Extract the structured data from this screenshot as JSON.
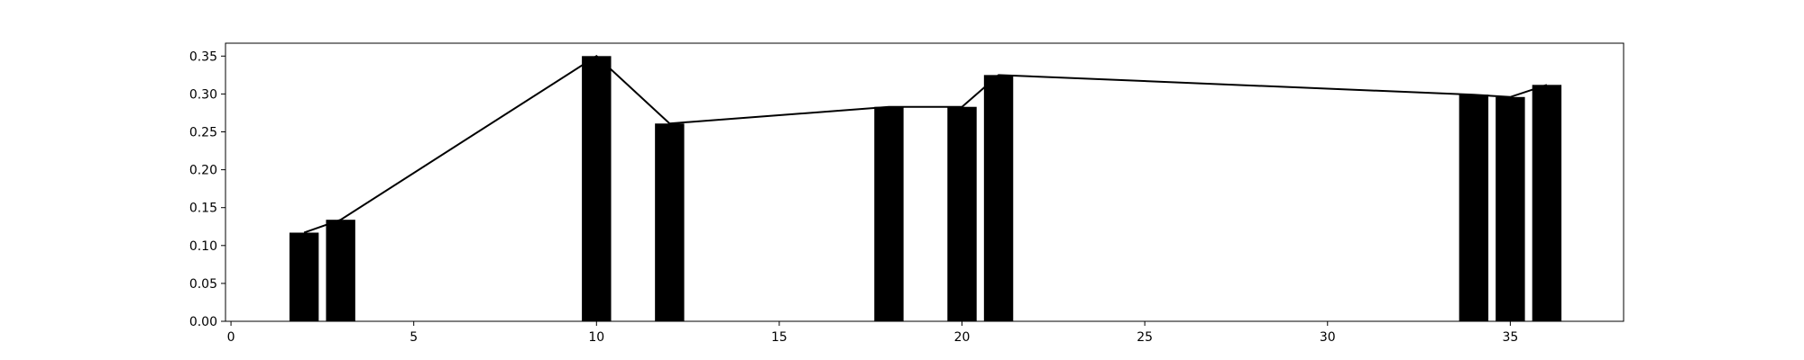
{
  "chart_data": {
    "type": "bar",
    "title": "",
    "xlabel": "",
    "ylabel": "",
    "xlim": [
      -0.15,
      38.1
    ],
    "ylim": [
      0,
      0.367
    ],
    "xticks": [
      0,
      5,
      10,
      15,
      20,
      25,
      30,
      35
    ],
    "xtick_labels": [
      "0",
      "5",
      "10",
      "15",
      "20",
      "25",
      "30",
      "35"
    ],
    "yticks": [
      0.0,
      0.05,
      0.1,
      0.15,
      0.2,
      0.25,
      0.3,
      0.35
    ],
    "ytick_labels": [
      "0.00",
      "0.05",
      "0.10",
      "0.15",
      "0.20",
      "0.25",
      "0.30",
      "0.35"
    ],
    "bar_width": 0.8,
    "grid": false,
    "bars": {
      "x": [
        2,
        3,
        10,
        12,
        18,
        20,
        21,
        34,
        35,
        36
      ],
      "values": [
        0.117,
        0.134,
        0.35,
        0.261,
        0.283,
        0.283,
        0.325,
        0.299,
        0.296,
        0.312
      ],
      "color": "#000000"
    },
    "line": {
      "x": [
        2,
        3,
        10,
        12,
        18,
        20,
        21,
        34,
        35,
        36
      ],
      "values": [
        0.117,
        0.134,
        0.35,
        0.261,
        0.283,
        0.283,
        0.325,
        0.299,
        0.296,
        0.312
      ],
      "color": "#000000"
    }
  }
}
